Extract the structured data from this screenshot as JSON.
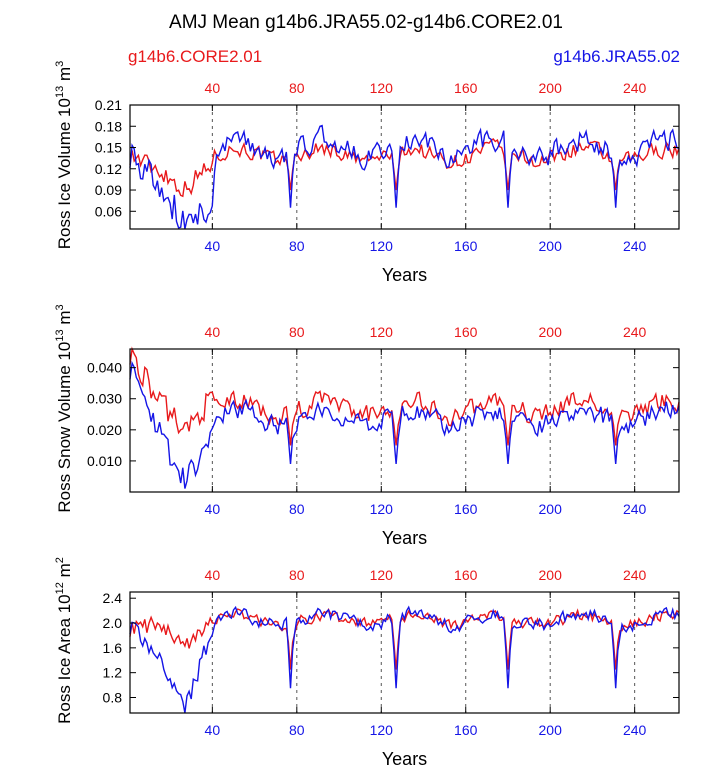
{
  "title": "AMJ Mean g14b6.JRA55.02-g14b6.CORE2.01",
  "legend": {
    "left": {
      "label": "g14b6.CORE2.01",
      "color": "#e8191b"
    },
    "right": {
      "label": "g14b6.JRA55.02",
      "color": "#1515e6"
    }
  },
  "colors": {
    "core": "#e8191b",
    "jra": "#1515e6",
    "axis": "#000000",
    "grid": "#555555"
  },
  "xlabel": "Years",
  "xticks": [
    40,
    80,
    120,
    160,
    200,
    240
  ],
  "xlim": [
    1,
    261
  ],
  "chart_data": [
    {
      "type": "line",
      "ylabel_main": "Ross Ice Volume 10",
      "ylabel_exp": "13",
      "ylabel_unit": " m",
      "ylabel_unit_exp": "3",
      "yticks": [
        "0.06",
        "0.09",
        "0.12",
        "0.15",
        "0.18",
        "0.21"
      ],
      "ylim": [
        0.035,
        0.21
      ],
      "base": {
        "core": 0.14,
        "jra": 0.15
      },
      "noise": {
        "core": 0.018,
        "jra": 0.025
      },
      "dip": {
        "core": 0.05,
        "jra": 0.085
      },
      "early": {
        "core": [
          0.14,
          0.12,
          0.09,
          0.13
        ],
        "jra": [
          0.14,
          0.1,
          0.04,
          0.07
        ]
      },
      "series": [
        {
          "name": "g14b6.CORE2.01",
          "color": "#e8191b"
        },
        {
          "name": "g14b6.JRA55.02",
          "color": "#1515e6"
        }
      ]
    },
    {
      "type": "line",
      "ylabel_main": "Ross Snow Volume 10",
      "ylabel_exp": "13",
      "ylabel_unit": " m",
      "ylabel_unit_exp": "3",
      "yticks": [
        "0.010",
        "0.020",
        "0.030",
        "0.040"
      ],
      "ylim": [
        0.0,
        0.046
      ],
      "base": {
        "core": 0.027,
        "jra": 0.024
      },
      "noise": {
        "core": 0.005,
        "jra": 0.005
      },
      "dip": {
        "core": 0.012,
        "jra": 0.015
      },
      "early": {
        "core": [
          0.045,
          0.03,
          0.02,
          0.03
        ],
        "jra": [
          0.04,
          0.02,
          0.004,
          0.018
        ]
      },
      "series": [
        {
          "name": "g14b6.CORE2.01",
          "color": "#e8191b"
        },
        {
          "name": "g14b6.JRA55.02",
          "color": "#1515e6"
        }
      ]
    },
    {
      "type": "line",
      "ylabel_main": "Ross Ice Area 10",
      "ylabel_exp": "12",
      "ylabel_unit": " m",
      "ylabel_unit_exp": "2",
      "yticks": [
        "0.8",
        "1.2",
        "1.6",
        "2.0",
        "2.4"
      ],
      "ylim": [
        0.55,
        2.5
      ],
      "base": {
        "core": 2.05,
        "jra": 2.05
      },
      "noise": {
        "core": 0.15,
        "jra": 0.17
      },
      "dip": {
        "core": 0.8,
        "jra": 1.1
      },
      "early": {
        "core": [
          1.9,
          2.0,
          1.6,
          2.1
        ],
        "jra": [
          1.95,
          1.5,
          0.6,
          1.9
        ]
      },
      "series": [
        {
          "name": "g14b6.CORE2.01",
          "color": "#e8191b"
        },
        {
          "name": "g14b6.JRA55.02",
          "color": "#1515e6"
        }
      ]
    }
  ],
  "dip_years": [
    77,
    127,
    180,
    231
  ]
}
